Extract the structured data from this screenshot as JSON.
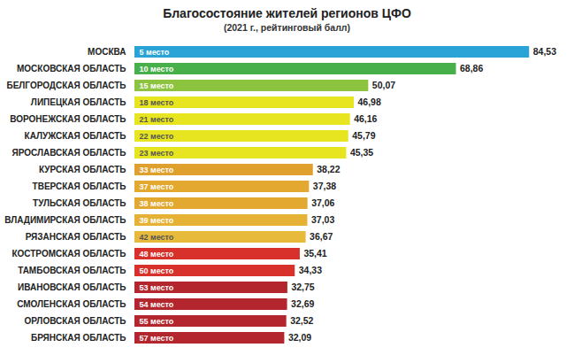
{
  "chart_data": {
    "type": "bar",
    "orientation": "horizontal",
    "title": "Благосостояние жителей регионов ЦФО",
    "subtitle": "(2021 г., рейтинговый балл)",
    "categories": [
      "МОСКВА",
      "МОСКОВСКАЯ ОБЛАСТЬ",
      "БЕЛГОРОДСКАЯ ОБЛАСТЬ",
      "ЛИПЕЦКАЯ ОБЛАСТЬ",
      "ВОРОНЕЖСКАЯ ОБЛАСТЬ",
      "КАЛУЖСКАЯ ОБЛАСТЬ",
      "ЯРОСЛАВСКАЯ ОБЛАСТЬ",
      "КУРСКАЯ ОБЛАСТЬ",
      "ТВЕРСКАЯ ОБЛАСТЬ",
      "ТУЛЬСКАЯ ОБЛАСТЬ",
      "ВЛАДИМИРСКАЯ ОБЛАСТЬ",
      "РЯЗАНСКАЯ ОБЛАСТЬ",
      "КОСТРОМСКАЯ ОБЛАСТЬ",
      "ТАМБОВСКАЯ ОБЛАСТЬ",
      "ИВАНОВСКАЯ ОБЛАСТЬ",
      "СМОЛЕНСКАЯ ОБЛАСТЬ",
      "ОРЛОВСКАЯ ОБЛАСТЬ",
      "БРЯНСКАЯ ОБЛАСТЬ"
    ],
    "values": [
      84.53,
      68.86,
      50.07,
      46.98,
      46.16,
      45.79,
      45.35,
      38.22,
      37.38,
      37.06,
      37.03,
      36.67,
      35.41,
      34.33,
      32.75,
      32.69,
      32.52,
      32.09
    ],
    "value_labels": [
      "84,53",
      "68,86",
      "50,07",
      "46,98",
      "46,16",
      "45,79",
      "45,35",
      "38,22",
      "37,38",
      "37,06",
      "37,03",
      "36,67",
      "35,41",
      "34,33",
      "32,75",
      "32,69",
      "32,52",
      "32,09"
    ],
    "rank_labels": [
      "5 место",
      "10 место",
      "15 место",
      "18 место",
      "21 место",
      "22 место",
      "23 место",
      "33 место",
      "37 место",
      "38 место",
      "39 место",
      "42 место",
      "48 место",
      "50 место",
      "53 место",
      "54 место",
      "55 место",
      "57 место"
    ],
    "colors": [
      "#2aa3d6",
      "#47b04a",
      "#8cc43f",
      "#e6e51f",
      "#e6e51f",
      "#e6e51f",
      "#e6e51f",
      "#e0a02e",
      "#e3a830",
      "#e3a830",
      "#e6b236",
      "#e8ba3c",
      "#d8302a",
      "#d8302a",
      "#b3262d",
      "#b3262d",
      "#b3262d",
      "#b3262d"
    ],
    "xlim": [
      0,
      86
    ],
    "data_labels": true,
    "tick_labels": "y",
    "grid": false
  }
}
